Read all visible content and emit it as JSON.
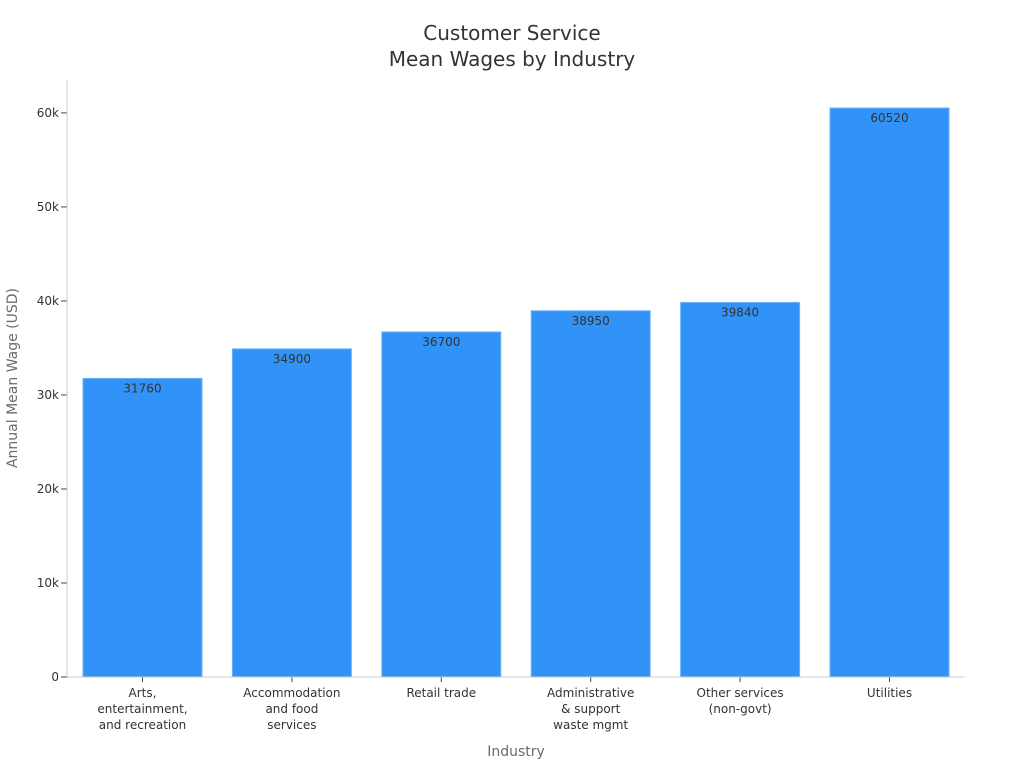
{
  "chart_data": {
    "type": "bar",
    "title_lines": [
      "Customer Service",
      "Mean Wages by Industry"
    ],
    "xlabel": "Industry",
    "ylabel": "Annual Mean Wage (USD)",
    "categories": [
      [
        "Arts,",
        "entertainment,",
        "and recreation"
      ],
      [
        "Accommodation",
        "and food",
        "services"
      ],
      [
        "Retail trade"
      ],
      [
        "Administrative",
        "& support",
        "waste mgmt"
      ],
      [
        "Other services",
        "(non-govt)"
      ],
      [
        "Utilities"
      ]
    ],
    "values": [
      31760,
      34900,
      36700,
      38950,
      39840,
      60520
    ],
    "data_labels": [
      "31760",
      "34900",
      "36700",
      "38950",
      "39840",
      "60520"
    ],
    "ylim": [
      0,
      63500
    ],
    "yticks": [
      0,
      10000,
      20000,
      30000,
      40000,
      50000,
      60000
    ],
    "ytick_labels": [
      "0",
      "10k",
      "20k",
      "30k",
      "40k",
      "50k",
      "60k"
    ],
    "bar_color": "#3193f8",
    "grid": false,
    "legend": "none"
  }
}
